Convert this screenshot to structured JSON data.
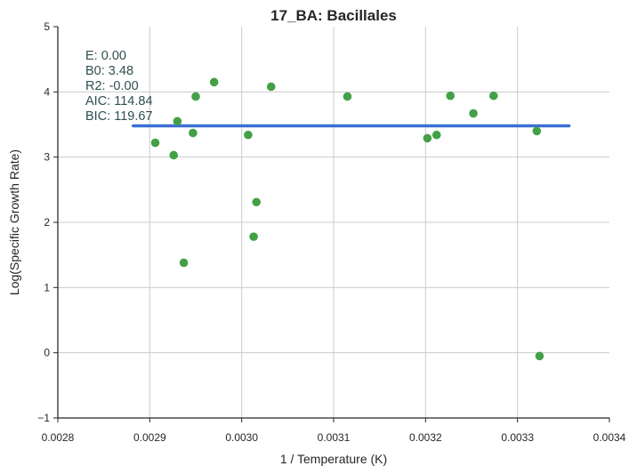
{
  "chart_data": {
    "type": "scatter",
    "title": "17_BA: Bacillales",
    "xlabel": "1 / Temperature (K)",
    "ylabel": "Log(Specific Growth Rate)",
    "xlim": [
      0.0028,
      0.0034
    ],
    "ylim": [
      -1,
      5
    ],
    "xticks": [
      0.0028,
      0.0029,
      0.003,
      0.0031,
      0.0032,
      0.0033,
      0.0034
    ],
    "xtick_labels": [
      "0.0028",
      "0.0029",
      "0.0030",
      "0.0031",
      "0.0032",
      "0.0033",
      "0.0034"
    ],
    "yticks": [
      -1,
      0,
      1,
      2,
      3,
      4,
      5
    ],
    "ytick_labels": [
      "−1",
      "0",
      "1",
      "2",
      "3",
      "4",
      "5"
    ],
    "grid": true,
    "point_color": "#43a047",
    "fit_color": "#3b6fd4",
    "points": [
      {
        "x": 0.002906,
        "y": 3.22
      },
      {
        "x": 0.002926,
        "y": 3.03
      },
      {
        "x": 0.00293,
        "y": 3.55
      },
      {
        "x": 0.002937,
        "y": 1.38
      },
      {
        "x": 0.002947,
        "y": 3.37
      },
      {
        "x": 0.00295,
        "y": 3.93
      },
      {
        "x": 0.00297,
        "y": 4.15
      },
      {
        "x": 0.003007,
        "y": 3.34
      },
      {
        "x": 0.003013,
        "y": 1.78
      },
      {
        "x": 0.003016,
        "y": 2.31
      },
      {
        "x": 0.003032,
        "y": 4.08
      },
      {
        "x": 0.003115,
        "y": 3.93
      },
      {
        "x": 0.003202,
        "y": 3.29
      },
      {
        "x": 0.003212,
        "y": 3.34
      },
      {
        "x": 0.003227,
        "y": 3.94
      },
      {
        "x": 0.003252,
        "y": 3.67
      },
      {
        "x": 0.003274,
        "y": 3.94
      },
      {
        "x": 0.003321,
        "y": 3.4
      },
      {
        "x": 0.003324,
        "y": -0.05
      }
    ],
    "fit_line": {
      "x": [
        0.002882,
        0.003356
      ],
      "y": [
        3.48,
        3.48
      ]
    },
    "annotation": [
      "E:  0.00",
      "B0:  3.48",
      "R2:  -0.00",
      "AIC: 114.84",
      "BIC: 119.67"
    ]
  }
}
